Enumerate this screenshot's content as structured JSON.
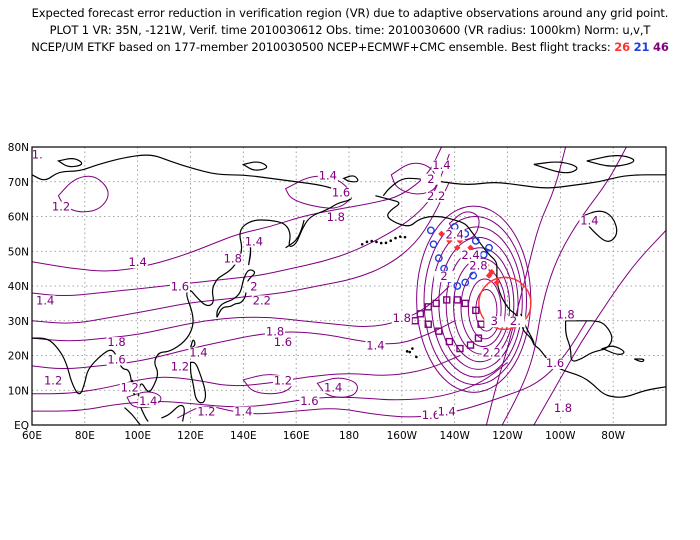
{
  "header": {
    "line1": "Expected forecast error reduction in verification region (VR) due to adaptive observations around any grid point.",
    "line2": "PLOT 1 VR: 35N, -121W, Verif. time 2010030612 Obs. time: 2010030600 (VR radius: 1000km) Norm: u,v,T",
    "line3_prefix": "NCEP/UM ETKF based on 177-member 2010030500 NCEP+ECMWF+CMC ensemble. Best flight tracks:",
    "tracks": [
      {
        "label": "26",
        "color": "#ff3030"
      },
      {
        "label": "21",
        "color": "#2040e0"
      },
      {
        "label": "46",
        "color": "#800080"
      }
    ]
  },
  "map": {
    "lon_labels": [
      "60E",
      "80E",
      "100E",
      "120E",
      "140E",
      "160E",
      "180",
      "160W",
      "140W",
      "120W",
      "100W",
      "80W"
    ],
    "lat_labels": [
      "EQ",
      "10N",
      "20N",
      "30N",
      "40N",
      "50N",
      "60N",
      "70N",
      "80N"
    ],
    "contour_color": "#800080",
    "coast_color": "#000000",
    "vr_circle_color": "#ff3030",
    "contour_labels": [
      {
        "t": "1.4",
        "lon": 172,
        "lat": 71
      },
      {
        "t": "1.6",
        "lon": 177,
        "lat": 66
      },
      {
        "t": "1.8",
        "lon": 175,
        "lat": 59
      },
      {
        "t": "1.2",
        "lon": 71,
        "lat": 62
      },
      {
        "t": "1.4",
        "lon": 100,
        "lat": 46
      },
      {
        "t": "1.4",
        "lon": 144,
        "lat": 52
      },
      {
        "t": "1.8",
        "lon": 136,
        "lat": 47
      },
      {
        "t": "1.6",
        "lon": 116,
        "lat": 39
      },
      {
        "t": "2",
        "lon": 144,
        "lat": 39
      },
      {
        "t": "2.2",
        "lon": 147,
        "lat": 35
      },
      {
        "t": "1.4",
        "lon": 65,
        "lat": 35
      },
      {
        "t": "1.8",
        "lon": 92,
        "lat": 23
      },
      {
        "t": "1.6",
        "lon": 92,
        "lat": 18
      },
      {
        "t": "1.2",
        "lon": 116,
        "lat": 16
      },
      {
        "t": "1.4",
        "lon": 123,
        "lat": 20
      },
      {
        "t": "1.8",
        "lon": 152,
        "lat": 26
      },
      {
        "t": "1.6",
        "lon": 155,
        "lat": 23
      },
      {
        "t": "1.4",
        "lon": 190,
        "lat": 22
      },
      {
        "t": "1.8",
        "lon": 200,
        "lat": 30
      },
      {
        "t": "1.2",
        "lon": 68,
        "lat": 12
      },
      {
        "t": "1.2",
        "lon": 97,
        "lat": 10
      },
      {
        "t": "1.4",
        "lon": 104,
        "lat": 6
      },
      {
        "t": "1.2",
        "lon": 155,
        "lat": 12
      },
      {
        "t": "1.4",
        "lon": 174,
        "lat": 10
      },
      {
        "t": "1.6",
        "lon": 165,
        "lat": 6
      },
      {
        "t": "1.2",
        "lon": 126,
        "lat": 3
      },
      {
        "t": "1.4",
        "lon": 140,
        "lat": 3
      },
      {
        "t": "1.6",
        "lon": 211,
        "lat": 2
      },
      {
        "t": "1.4",
        "lon": 217,
        "lat": 3
      },
      {
        "t": "1.8",
        "lon": 261,
        "lat": 4
      },
      {
        "t": "1.6",
        "lon": 258,
        "lat": 17
      },
      {
        "t": "1.8",
        "lon": 262,
        "lat": 31
      },
      {
        "t": "1.4",
        "lon": 271,
        "lat": 58
      },
      {
        "t": "1.4",
        "lon": 215,
        "lat": 74
      },
      {
        "t": "2",
        "lon": 211,
        "lat": 70
      },
      {
        "t": "2.2",
        "lon": 213,
        "lat": 65
      },
      {
        "t": "2.4",
        "lon": 220,
        "lat": 54
      },
      {
        "t": "2.4",
        "lon": 226,
        "lat": 48
      },
      {
        "t": "2.8",
        "lon": 229,
        "lat": 45
      },
      {
        "t": "2",
        "lon": 216,
        "lat": 42
      },
      {
        "t": "3",
        "lon": 235,
        "lat": 29
      },
      {
        "t": "2.2",
        "lon": 234,
        "lat": 20
      },
      {
        "t": "2.",
        "lon": 243,
        "lat": 29
      },
      {
        "t": "1.",
        "lon": 62,
        "lat": 77
      }
    ],
    "track_red": [
      [
        218,
        55
      ],
      [
        222,
        53
      ],
      [
        226,
        51
      ],
      [
        229,
        49
      ],
      [
        232,
        46
      ],
      [
        234,
        44
      ],
      [
        236,
        41
      ],
      [
        233,
        43
      ],
      [
        230,
        45
      ],
      [
        227,
        47
      ],
      [
        224,
        49
      ],
      [
        221,
        51
      ],
      [
        218,
        53
      ],
      [
        215,
        55
      ]
    ],
    "track_blue": [
      [
        211,
        56
      ],
      [
        212,
        52
      ],
      [
        214,
        48
      ],
      [
        216,
        45
      ],
      [
        218,
        42
      ],
      [
        221,
        40
      ],
      [
        224,
        41
      ],
      [
        227,
        43
      ],
      [
        229,
        46
      ],
      [
        231,
        49
      ],
      [
        233,
        51
      ],
      [
        228,
        53
      ],
      [
        224,
        55
      ],
      [
        220,
        57
      ]
    ],
    "track_purple": [
      [
        205,
        30
      ],
      [
        207,
        32
      ],
      [
        210,
        34
      ],
      [
        213,
        35
      ],
      [
        217,
        36
      ],
      [
        221,
        36
      ],
      [
        224,
        35
      ],
      [
        228,
        33
      ],
      [
        230,
        29
      ],
      [
        229,
        25
      ],
      [
        226,
        23
      ],
      [
        222,
        22
      ],
      [
        218,
        24
      ],
      [
        214,
        27
      ],
      [
        210,
        29
      ]
    ]
  }
}
